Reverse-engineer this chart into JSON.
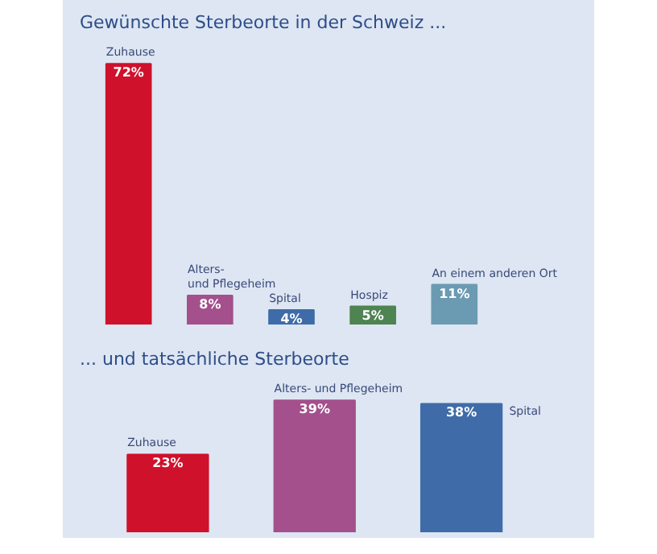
{
  "chart_data": [
    {
      "type": "bar",
      "title": "Gewünschte Sterbeorte in der Schweiz ...",
      "categories": [
        "Zuhause",
        "Alters-\nund Pflegeheim",
        "Spital",
        "Hospiz",
        "An einem anderen Ort"
      ],
      "values": [
        72,
        8,
        4,
        5,
        11
      ],
      "colors": [
        "#d0112b",
        "#a3508c",
        "#3f6ca8",
        "#4e8352",
        "#6b9bb2"
      ],
      "value_labels": [
        "72%",
        "8%",
        "4%",
        "5%",
        "11%"
      ],
      "grid": false
    },
    {
      "type": "bar",
      "title": "... und tatsächliche Sterbeorte",
      "categories": [
        "Zuhause",
        "Alters- und Pflegeheim",
        "Spital"
      ],
      "values": [
        23,
        39,
        38
      ],
      "colors": [
        "#d0112b",
        "#a3508c",
        "#3f6ca8"
      ],
      "value_labels": [
        "23%",
        "39%",
        "38%"
      ],
      "grid": false
    }
  ]
}
